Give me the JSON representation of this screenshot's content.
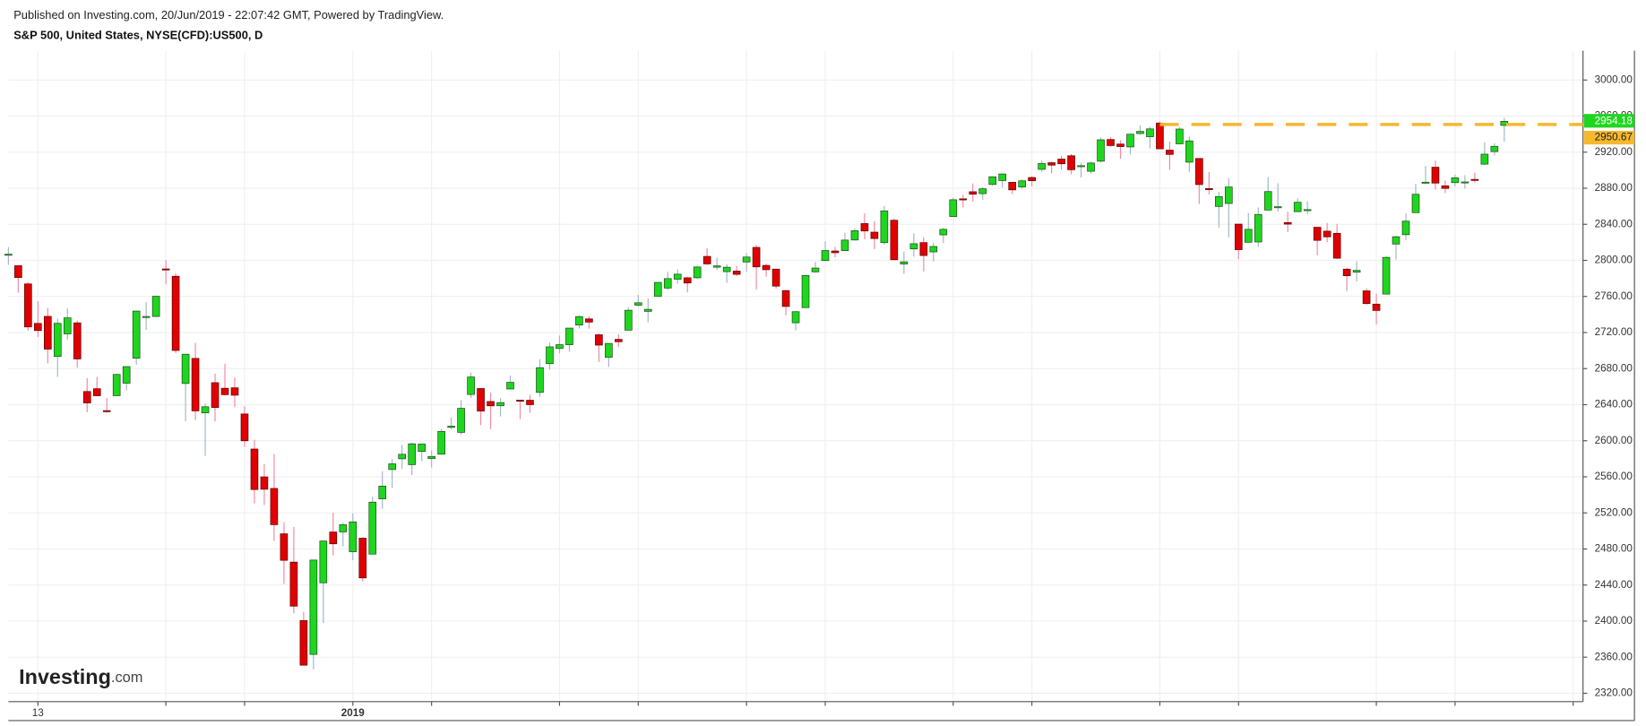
{
  "chart_data": {
    "type": "candlestick",
    "title": "Published on Investing.com, 20/Jun/2019 - 22:07:42 GMT, Powered by TradingView.",
    "subtitle": "S&P 500, United States, NYSE(CFD):US500, D",
    "watermark": [
      "Investing",
      ".com"
    ],
    "open": [
      2806.4,
      2794.1,
      2773.9,
      2730.1,
      2737.9,
      2693.5,
      2718.5,
      2730.7,
      2654.6,
      2657.7,
      2633.4,
      2649.97,
      2663.8,
      2691.5,
      2736.97,
      2737.8,
      2790.5,
      2782.4,
      2663.5,
      2691.3,
      2630.9,
      2664.4,
      2658.2,
      2658.7,
      2629.7,
      2590.8,
      2559.9,
      2547.1,
      2496.8,
      2465.4,
      2400.6,
      2363.1,
      2442.5,
      2498.8,
      2498.9,
      2476.96,
      2491.9,
      2474.3,
      2535.6,
      2568.1,
      2580.0,
      2573.5,
      2588.1,
      2580.3,
      2585.1,
      2614.8,
      2609.3,
      2651.3,
      2657.9,
      2643.5,
      2638.8,
      2657.4,
      2644.97,
      2644.9,
      2653.6,
      2685.5,
      2702.3,
      2706.5,
      2728.3,
      2735.1,
      2717.5,
      2692.4,
      2712.4,
      2722.6,
      2750.3,
      2743.5,
      2760.2,
      2769.3,
      2779.1,
      2780.7,
      2780.7,
      2804.4,
      2792.4,
      2787.5,
      2788.1,
      2798.2,
      2814.4,
      2794.4,
      2790.3,
      2766.5,
      2730.8,
      2747.6,
      2787.3,
      2799.8,
      2810.4,
      2810.8,
      2822.6,
      2840.8,
      2831.3,
      2819.7,
      2844.5,
      2796.0,
      2812.7,
      2819.7,
      2809.4,
      2828.3,
      2848.6,
      2868.2,
      2876.1,
      2873.99,
      2884.2,
      2888.5,
      2886.6,
      2881.4,
      2891.9,
      2900.9,
      2908.3,
      2912.3,
      2916.0,
      2904.8,
      2898.8,
      2909.99,
      2934.0,
      2928.99,
      2925.8,
      2940.6,
      2937.1,
      2952.3,
      2922.2,
      2929.2,
      2908.9,
      2913.0,
      2879.6,
      2859.8,
      2863.1,
      2840.2,
      2820.1,
      2820.4,
      2855.8,
      2858.6,
      2841.9,
      2854.0,
      2856.1,
      2836.7,
      2832.4,
      2830.0,
      2790.25,
      2786.9,
      2766.2,
      2751.5,
      2762.6,
      2818.1,
      2828.5,
      2852.9,
      2885.8,
      2903.3,
      2882.7,
      2886.2,
      2886.8,
      2889.8,
      2906.7,
      2920.6,
      2949.6
    ],
    "high": [
      2814.8,
      2794.1,
      2775.9,
      2754.6,
      2747.0,
      2735.4,
      2746.8,
      2733.2,
      2669.4,
      2670.7,
      2647.6,
      2674.3,
      2682.5,
      2744.0,
      2753.8,
      2760.9,
      2800.2,
      2785.9,
      2696.1,
      2708.5,
      2641.3,
      2674.4,
      2685.4,
      2670.2,
      2638.3,
      2601.1,
      2573.99,
      2585.3,
      2509.6,
      2504.4,
      2410.3,
      2467.8,
      2489.1,
      2520.3,
      2509.2,
      2519.5,
      2493.1,
      2538.1,
      2566.2,
      2579.8,
      2595.3,
      2597.8,
      2596.3,
      2589.3,
      2613.1,
      2625.8,
      2645.1,
      2675.5,
      2657.9,
      2653.2,
      2647.2,
      2672.4,
      2644.97,
      2650.9,
      2690.4,
      2708.9,
      2716.7,
      2724.99,
      2738.98,
      2738.1,
      2719.3,
      2708.1,
      2718.1,
      2748.2,
      2761.9,
      2757.9,
      2775.7,
      2787.3,
      2789.9,
      2781.6,
      2794.2,
      2813.5,
      2803.1,
      2795.8,
      2793.7,
      2808.0,
      2816.9,
      2796.4,
      2790.3,
      2767.3,
      2744.1,
      2784.0,
      2798.3,
      2821.2,
      2815.0,
      2830.7,
      2835.4,
      2852.4,
      2843.5,
      2860.3,
      2846.2,
      2809.8,
      2829.9,
      2825.6,
      2819.7,
      2836.0,
      2869.4,
      2872.9,
      2885.2,
      2881.3,
      2893.2,
      2895.95,
      2886.9,
      2889.7,
      2893.4,
      2910.5,
      2909.6,
      2916.1,
      2918.0,
      2908.4,
      2909.5,
      2936.3,
      2936.8,
      2933.1,
      2939.9,
      2949.5,
      2948.2,
      2954.1,
      2931.7,
      2947.9,
      2937.3,
      2913.0,
      2897.96,
      2875.97,
      2891.3,
      2840.2,
      2852.5,
      2858.7,
      2892.2,
      2885.5,
      2853.9,
      2868.9,
      2865.5,
      2836.7,
      2841.4,
      2840.5,
      2792.0,
      2799.0,
      2768.98,
      2763.1,
      2804.5,
      2827.3,
      2852.1,
      2884.97,
      2904.8,
      2910.6,
      2888.6,
      2895.2,
      2894.45,
      2897.3,
      2930.8,
      2929.7,
      2958.1
    ],
    "low": [
      2794.9,
      2764.2,
      2722.0,
      2714.98,
      2685.8,
      2670.8,
      2712.2,
      2681.1,
      2631.5,
      2649.8,
      2631.1,
      2649.97,
      2655.9,
      2684.4,
      2722.9,
      2737.1,
      2773.4,
      2697.2,
      2621.5,
      2623.1,
      2583.2,
      2621.3,
      2650.3,
      2637.3,
      2593.3,
      2530.5,
      2528.7,
      2488.96,
      2441.2,
      2408.6,
      2351.1,
      2346.6,
      2397.9,
      2472.9,
      2482.8,
      2467.5,
      2443.96,
      2474.3,
      2524.6,
      2547.6,
      2568.9,
      2562.0,
      2577.4,
      2570.4,
      2585.1,
      2612.7,
      2606.4,
      2647.6,
      2617.3,
      2612.9,
      2627.0,
      2657.3,
      2624.1,
      2631.1,
      2648.3,
      2678.7,
      2696.9,
      2698.8,
      2724.5,
      2724.2,
      2687.3,
      2681.8,
      2703.9,
      2722.6,
      2748.6,
      2731.2,
      2760.2,
      2767.3,
      2774.1,
      2764.6,
      2779.1,
      2794.99,
      2789.5,
      2775.1,
      2782.5,
      2787.4,
      2767.7,
      2782.0,
      2768.7,
      2739.1,
      2722.3,
      2747.6,
      2786.7,
      2799.8,
      2803.5,
      2810.8,
      2821.99,
      2823.3,
      2812.4,
      2817.4,
      2800.5,
      2785.0,
      2803.99,
      2787.7,
      2798.8,
      2819.2,
      2848.6,
      2858.8,
      2865.2,
      2867.1,
      2882.99,
      2880.8,
      2873.3,
      2879.1,
      2881.99,
      2898.4,
      2896.5,
      2900.7,
      2895.5,
      2891.9,
      2896.35,
      2908.5,
      2926.1,
      2912.8,
      2917.6,
      2939.4,
      2924.1,
      2923.4,
      2900.5,
      2929.2,
      2898.2,
      2862.6,
      2873.3,
      2836.4,
      2825.4,
      2801.4,
      2820.1,
      2815.1,
      2855.8,
      2854.2,
      2831.3,
      2854.0,
      2851.1,
      2805.5,
      2820.2,
      2801.6,
      2766.1,
      2776.7,
      2750.5,
      2728.8,
      2762.6,
      2800.9,
      2822.5,
      2852.9,
      2885.5,
      2878.5,
      2874.7,
      2881.99,
      2879.6,
      2886.5,
      2905.4,
      2916.3,
      2931.5
    ],
    "close": [
      2806.8,
      2781.0,
      2726.2,
      2722.2,
      2701.6,
      2730.2,
      2736.3,
      2690.7,
      2641.9,
      2649.9,
      2632.6,
      2673.5,
      2682.2,
      2743.8,
      2737.8,
      2760.2,
      2790.4,
      2700.1,
      2695.95,
      2633.1,
      2637.7,
      2636.8,
      2651.1,
      2650.5,
      2599.95,
      2545.9,
      2546.2,
      2506.96,
      2467.4,
      2416.6,
      2351.1,
      2467.7,
      2488.8,
      2485.7,
      2506.9,
      2510.0,
      2447.9,
      2531.9,
      2549.7,
      2574.4,
      2584.96,
      2596.6,
      2596.3,
      2582.6,
      2610.3,
      2616.1,
      2635.96,
      2670.7,
      2632.9,
      2638.7,
      2642.3,
      2664.8,
      2643.85,
      2640.0,
      2681.05,
      2704.1,
      2706.5,
      2724.9,
      2737.7,
      2731.6,
      2706.05,
      2707.9,
      2709.8,
      2744.7,
      2753.0,
      2745.7,
      2775.6,
      2779.8,
      2784.7,
      2774.9,
      2792.7,
      2796.1,
      2793.9,
      2792.4,
      2784.5,
      2803.7,
      2792.8,
      2789.65,
      2771.45,
      2748.9,
      2743.1,
      2783.3,
      2791.5,
      2810.9,
      2808.5,
      2822.5,
      2832.9,
      2832.6,
      2824.2,
      2854.9,
      2800.7,
      2798.4,
      2818.5,
      2805.4,
      2815.4,
      2834.4,
      2867.2,
      2867.2,
      2873.4,
      2879.4,
      2892.7,
      2895.8,
      2878.2,
      2888.2,
      2888.3,
      2907.4,
      2905.6,
      2907.1,
      2900.5,
      2905.0,
      2907.97,
      2933.7,
      2927.3,
      2926.2,
      2939.9,
      2943.0,
      2945.8,
      2923.7,
      2917.5,
      2945.6,
      2932.5,
      2884.05,
      2879.4,
      2870.7,
      2881.4,
      2811.9,
      2834.4,
      2850.96,
      2876.3,
      2859.5,
      2840.2,
      2864.4,
      2856.3,
      2822.2,
      2826.1,
      2802.4,
      2783.0,
      2788.9,
      2752.1,
      2744.45,
      2803.3,
      2826.2,
      2843.5,
      2873.3,
      2886.7,
      2885.7,
      2879.8,
      2891.6,
      2886.98,
      2889.7,
      2917.75,
      2926.5,
      2954.18
    ],
    "up_color": "#1fd61f",
    "down_color": "#e00000",
    "xlim": [
      0,
      160
    ],
    "xticks": [
      {
        "value": 3,
        "label": "13"
      },
      {
        "value": 35,
        "label": "2019"
      }
    ],
    "xgrid": [
      3,
      16,
      24,
      35,
      43,
      56,
      64,
      75,
      83,
      96,
      104,
      117,
      125,
      139,
      147,
      159
    ],
    "ylim": [
      2310.7,
      3032.6
    ],
    "yticks": [
      {
        "value": 2320,
        "label": "2320.00"
      },
      {
        "value": 2360,
        "label": "2360.00"
      },
      {
        "value": 2400,
        "label": "2400.00"
      },
      {
        "value": 2440,
        "label": "2440.00"
      },
      {
        "value": 2480,
        "label": "2480.00"
      },
      {
        "value": 2520,
        "label": "2520.00"
      },
      {
        "value": 2560,
        "label": "2560.00"
      },
      {
        "value": 2600,
        "label": "2600.00"
      },
      {
        "value": 2640,
        "label": "2640.00"
      },
      {
        "value": 2680,
        "label": "2680.00"
      },
      {
        "value": 2720,
        "label": "2720.00"
      },
      {
        "value": 2760,
        "label": "2760.00"
      },
      {
        "value": 2800,
        "label": "2800.00"
      },
      {
        "value": 2840,
        "label": "2840.00"
      },
      {
        "value": 2880,
        "label": "2880.00"
      },
      {
        "value": 2920,
        "label": "2920.00"
      },
      {
        "value": 2960,
        "label": "2960.00"
      },
      {
        "value": 3000,
        "label": "3000.00"
      }
    ],
    "grid": true,
    "last_price_label": "2954.18",
    "hline": {
      "value": 2950.67,
      "label": "2950.67",
      "start": 117,
      "color": "#f5b82e"
    }
  }
}
